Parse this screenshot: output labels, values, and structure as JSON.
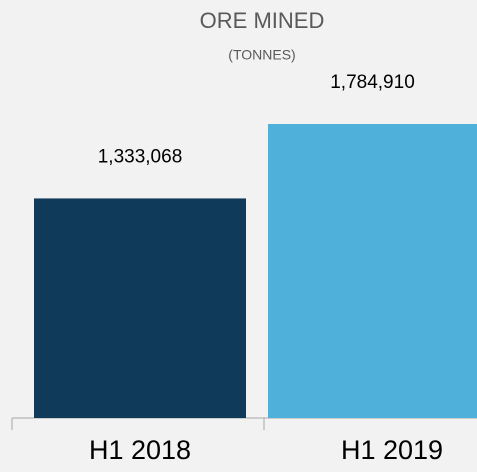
{
  "chart_data": {
    "type": "bar",
    "title": "ORE MINED",
    "subtitle": "(TONNES)",
    "categories": [
      "H1 2018",
      "H1 2019"
    ],
    "values": [
      1333068,
      1784910
    ],
    "value_labels": [
      "1,333,068",
      "1,784,910"
    ],
    "colors": [
      "#0f3a5a",
      "#4fb0d9"
    ]
  }
}
